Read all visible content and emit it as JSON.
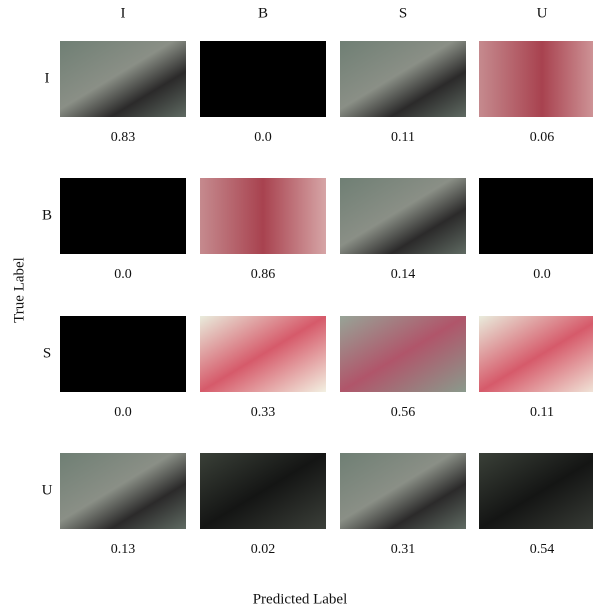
{
  "figure": {
    "column_labels": [
      "I",
      "B",
      "S",
      "U"
    ],
    "row_labels": [
      "I",
      "B",
      "S",
      "U"
    ],
    "y_axis_label": "True Label",
    "x_axis_label": "Predicted Label",
    "matrix": [
      [
        "0.83",
        "0.0",
        "0.11",
        "0.06"
      ],
      [
        "0.0",
        "0.86",
        "0.14",
        "0.0"
      ],
      [
        "0.0",
        "0.33",
        "0.56",
        "0.11"
      ],
      [
        "0.13",
        "0.02",
        "0.31",
        "0.54"
      ]
    ]
  }
}
